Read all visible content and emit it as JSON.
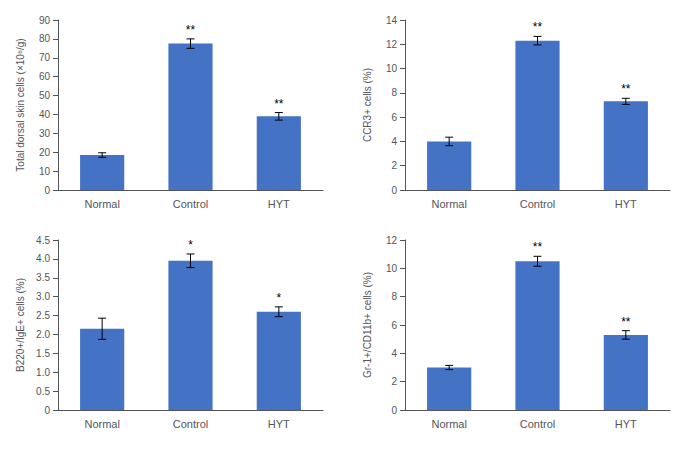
{
  "chart_data": [
    {
      "type": "bar",
      "ylabel": "Total dorsal skin cells (×10⁶/g)",
      "categories": [
        "Normal",
        "Control",
        "HYT"
      ],
      "values": [
        18.5,
        77.5,
        39.0
      ],
      "errors": [
        1.2,
        2.5,
        2.0
      ],
      "annotations": [
        null,
        "**",
        "**"
      ],
      "color": "#4472C4",
      "grid": false,
      "ylim": [
        0,
        90
      ],
      "yticks": [
        0,
        10,
        20,
        30,
        40,
        50,
        60,
        70,
        80,
        90
      ]
    },
    {
      "type": "bar",
      "ylabel": "CCR3+ cells (%)",
      "categories": [
        "Normal",
        "Control",
        "HYT"
      ],
      "values": [
        4.0,
        12.3,
        7.3
      ],
      "errors": [
        0.35,
        0.35,
        0.25
      ],
      "annotations": [
        null,
        "**",
        "**"
      ],
      "color": "#4472C4",
      "grid": false,
      "ylim": [
        0,
        14
      ],
      "yticks": [
        0,
        2,
        4,
        6,
        8,
        10,
        12,
        14
      ]
    },
    {
      "type": "bar",
      "ylabel": "B220+/IgE+ cells (%)",
      "categories": [
        "Normal",
        "Control",
        "HYT"
      ],
      "values": [
        2.15,
        3.95,
        2.6
      ],
      "errors": [
        0.28,
        0.18,
        0.13
      ],
      "annotations": [
        null,
        "*",
        "*"
      ],
      "color": "#4472C4",
      "grid": false,
      "ylim": [
        0,
        4.5
      ],
      "yticks": [
        0,
        0.5,
        {
          "value": 1,
          "label": "1.0"
        },
        1.5,
        {
          "value": 2,
          "label": "2.0"
        },
        2.5,
        {
          "value": 3,
          "label": "3.0"
        },
        3.5,
        {
          "value": 4,
          "label": "4.0"
        },
        4.5
      ]
    },
    {
      "type": "bar",
      "ylabel": "Gr-1+/CD11b+ cells (%)",
      "categories": [
        "Normal",
        "Control",
        "HYT"
      ],
      "values": [
        3.0,
        10.5,
        5.3
      ],
      "errors": [
        0.15,
        0.35,
        0.3
      ],
      "annotations": [
        null,
        "**",
        "**"
      ],
      "color": "#4472C4",
      "grid": false,
      "ylim": [
        0,
        12
      ],
      "yticks": [
        0,
        2,
        4,
        6,
        8,
        10,
        12
      ]
    }
  ]
}
